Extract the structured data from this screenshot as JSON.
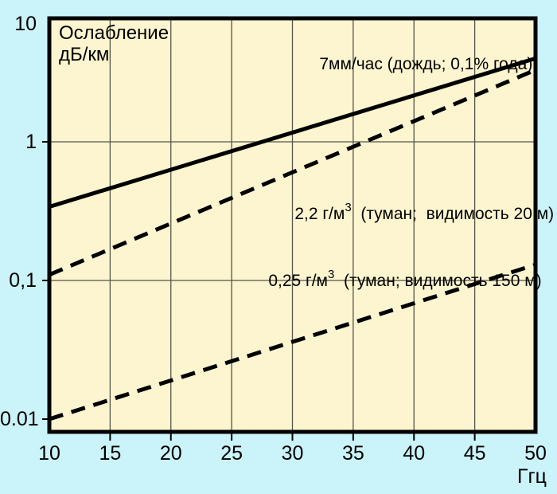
{
  "colors": {
    "background": "#cbf3fa",
    "plot_bg": "#fcf5cf",
    "grid": "#55554a",
    "line": "#000000",
    "text": "#000000"
  },
  "axis_title": {
    "line1": "Ослабление",
    "line2": "дБ/км"
  },
  "x_unit": "Ггц",
  "annotations": {
    "rain": {
      "text": "7мм/час (дождь; 0,1% года)"
    },
    "fog_heavy": {
      "prefix": "2,2 г/м",
      "sup": "3",
      "suffix": "  (туман;  видимость 20 м)"
    },
    "fog_light": {
      "prefix": "0,25 г/м",
      "sup": "3",
      "suffix": "  (туман; видимость 150 м)"
    }
  },
  "chart_data": {
    "type": "line",
    "title": "Ослабление дБ/км",
    "ylabel": "Ослабление, дБ/км",
    "xlabel": "Ггц",
    "y_scale": "log",
    "x_range": [
      10,
      50
    ],
    "y_range": [
      0.01,
      10
    ],
    "x_ticks": [
      10,
      15,
      20,
      25,
      30,
      35,
      40,
      45,
      50
    ],
    "y_ticks": [
      {
        "value": 10,
        "label": "10"
      },
      {
        "value": 1,
        "label": "1"
      },
      {
        "value": 0.1,
        "label": "0,1"
      },
      {
        "value": 0.01,
        "label": "0.01"
      }
    ],
    "grid": {
      "x_values": [
        15,
        20,
        25,
        30,
        35,
        40,
        45
      ],
      "y_values": [
        1,
        0.1
      ]
    },
    "legend_position": "inline-annotations",
    "series": [
      {
        "name": "rain-7mm",
        "label": "7мм/час (дождь; 0,1% года)",
        "line_style": "solid",
        "points": [
          [
            10,
            0.34
          ],
          [
            50,
            4.0
          ]
        ]
      },
      {
        "name": "fog-2-2",
        "label": "2,2 г/м³ (туман; видимость 20 м)",
        "line_style": "dashed",
        "points": [
          [
            10,
            0.11
          ],
          [
            50,
            3.3
          ]
        ]
      },
      {
        "name": "fog-0-25",
        "label": "0,25 г/м³ (туман; видимость 150 м)",
        "line_style": "dashed",
        "points": [
          [
            10,
            0.01
          ],
          [
            50,
            0.13
          ]
        ]
      }
    ]
  }
}
